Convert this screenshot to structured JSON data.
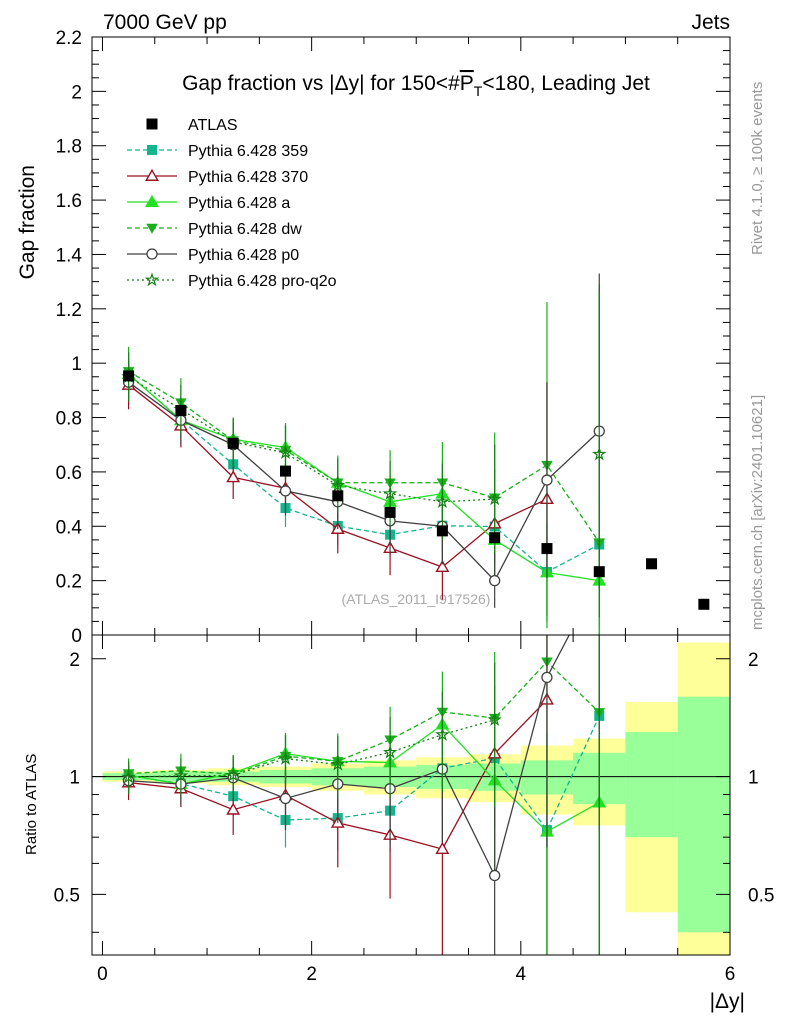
{
  "header": {
    "left": "7000 GeV pp",
    "right": "Jets",
    "rivet": "Rivet 4.1.0, ≥ 100k events",
    "mcplots": "mcplots.cern.ch [arXiv:2401.10621]"
  },
  "chart_data": {
    "type": "scatter",
    "title": "Gap fraction vs |Δy| for 150<#P̅T<180, Leading Jet",
    "title_main": "Gap fraction vs |Δy| for 150<#",
    "title_p": "P",
    "title_sub": "T",
    "title_end": "<180, Leading Jet",
    "ylabel": "Gap fraction",
    "ratio_ylabel": "Ratio to ATLAS",
    "xlabel": "|Δy|",
    "watermark": "(ATLAS_2011_I917526)",
    "xlim": [
      -0.1,
      6.0
    ],
    "ylim": [
      0,
      2.2
    ],
    "ratio_ylim": [
      0.35,
      2.3
    ],
    "x_ticks": [
      "0",
      "2",
      "4",
      "6"
    ],
    "y_ticks": [
      "0",
      "0.2",
      "0.4",
      "0.6",
      "0.8",
      "1",
      "1.2",
      "1.4",
      "1.6",
      "1.8",
      "2",
      "2.2"
    ],
    "ratio_ticks": [
      "0.5",
      "1",
      "2"
    ],
    "x": [
      0.25,
      0.75,
      1.25,
      1.75,
      2.25,
      2.75,
      3.25,
      3.75,
      4.25,
      4.75,
      5.25,
      5.75
    ],
    "data": {
      "name": "ATLAS",
      "values": [
        0.953,
        0.826,
        0.705,
        0.603,
        0.512,
        0.451,
        0.383,
        0.358,
        0.318,
        0.233,
        0.262,
        0.113
      ]
    },
    "bands": {
      "stat": [
        0.02,
        0.03,
        0.03,
        0.04,
        0.05,
        0.06,
        0.07,
        0.08,
        0.1,
        0.15,
        0.3,
        0.6
      ],
      "total": [
        0.03,
        0.04,
        0.05,
        0.06,
        0.08,
        0.1,
        0.12,
        0.14,
        0.2,
        0.25,
        0.55,
        1.2
      ]
    },
    "series": [
      {
        "name": "Pythia 6.428 359",
        "color": "#13b58e",
        "marker": "square",
        "dash": "5,3",
        "values": [
          0.959,
          0.792,
          0.628,
          0.467,
          0.401,
          0.369,
          0.402,
          0.399,
          0.232,
          0.333
        ],
        "errors": [
          0.06,
          0.06,
          0.07,
          0.07,
          0.07,
          0.08,
          0.1,
          0.12,
          0.18,
          0.3
        ]
      },
      {
        "name": "Pythia 6.428 370",
        "color": "#9b1020",
        "marker": "triangle-open",
        "dash": "",
        "values": [
          0.92,
          0.77,
          0.58,
          0.54,
          0.39,
          0.32,
          0.25,
          0.41,
          0.5,
          null
        ],
        "errors": [
          0.09,
          0.08,
          0.08,
          0.09,
          0.09,
          0.1,
          0.12,
          0.2,
          0.43,
          0
        ]
      },
      {
        "name": "Pythia 6.428 a",
        "color": "#22e022",
        "marker": "triangle",
        "dash": "",
        "values": [
          0.96,
          0.79,
          0.72,
          0.69,
          0.56,
          0.49,
          0.52,
          0.35,
          0.23,
          0.2
        ],
        "errors": [
          0.06,
          0.07,
          0.07,
          0.08,
          0.08,
          0.1,
          0.12,
          0.15,
          0.18,
          0.3
        ]
      },
      {
        "name": "Pythia 6.428 dw",
        "color": "#18b018",
        "marker": "triangle-down",
        "dash": "5,3",
        "values": [
          0.97,
          0.855,
          0.715,
          0.68,
          0.56,
          0.56,
          0.56,
          0.505,
          0.625,
          0.34
        ],
        "errors": [
          0.09,
          0.09,
          0.08,
          0.1,
          0.1,
          0.12,
          0.15,
          0.24,
          0.6,
          0.95
        ]
      },
      {
        "name": "Pythia 6.428 p0",
        "color": "#404040",
        "marker": "circle-open",
        "dash": "",
        "values": [
          0.93,
          0.79,
          0.7,
          0.53,
          0.49,
          0.42,
          0.4,
          0.2,
          0.57,
          0.75
        ],
        "errors": [
          0.07,
          0.09,
          0.08,
          0.09,
          0.1,
          0.12,
          0.14,
          0.1,
          0.36,
          0.58
        ]
      },
      {
        "name": "Pythia 6.428 pro-q2o",
        "color": "#158015",
        "marker": "star",
        "dash": "2,3",
        "values": [
          0.95,
          0.83,
          0.71,
          0.67,
          0.55,
          0.52,
          0.49,
          0.5,
          null,
          0.665
        ],
        "errors": [
          0.09,
          0.09,
          0.09,
          0.1,
          0.1,
          0.12,
          0.14,
          0.2,
          0,
          0.6
        ]
      }
    ]
  }
}
